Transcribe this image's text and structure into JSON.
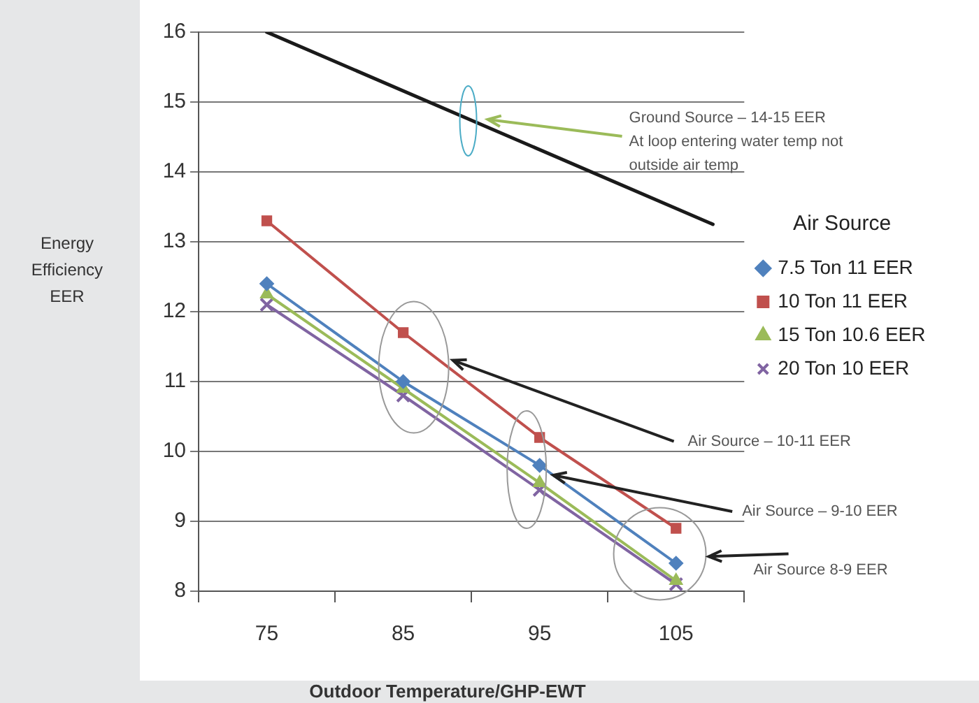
{
  "chart_data": {
    "type": "line",
    "xlabel": "Outdoor Temperature/GHP-EWT",
    "ylabel": "Energy\nEfficiency\nEER",
    "legend_title": "Air Source",
    "x": [
      75,
      85,
      95,
      105
    ],
    "xlim": [
      70,
      110
    ],
    "xticks": [
      {
        "value": 70,
        "label": null
      },
      75,
      {
        "value": 80,
        "label": null
      },
      85,
      {
        "value": 90,
        "label": null
      },
      95,
      {
        "value": 100,
        "label": null
      },
      105,
      {
        "value": 110,
        "label": null
      }
    ],
    "ylim": [
      8,
      16
    ],
    "yticks": [
      8,
      9,
      10,
      11,
      12,
      13,
      14,
      15,
      16
    ],
    "grid": "y",
    "legend": "right",
    "line_style": "solid",
    "series": [
      {
        "name": "7.5 Ton 11 EER",
        "color": "#4f81bd",
        "marker": "diamond",
        "values": [
          12.4,
          11.0,
          9.8,
          8.4
        ]
      },
      {
        "name": "10 Ton 11 EER",
        "color": "#c0504d",
        "marker": "square",
        "values": [
          13.3,
          11.7,
          10.2,
          8.9
        ]
      },
      {
        "name": "15 Ton 10.6 EER",
        "color": "#9bbb59",
        "marker": "triangle",
        "values": [
          12.25,
          10.9,
          9.55,
          8.15
        ]
      },
      {
        "name": "20 Ton 10 EER",
        "color": "#8064a2",
        "marker": "cross",
        "values": [
          12.1,
          10.8,
          9.45,
          8.1
        ]
      },
      {
        "color": "#1a1a1a",
        "marker": "none",
        "x": [
          75,
          107.7
        ],
        "values": [
          16.0,
          13.25
        ]
      }
    ],
    "annotations": [
      {
        "text": "Ground Source – 14-15 EER\nAt loop entering water temp not\noutside air temp",
        "x": 91.2,
        "y": 14.75
      },
      "Air Source – 10-11 EER",
      {
        "text": "Air Source – 9-10 EER",
        "x": 96,
        "y": 9.66
      },
      "Air Source 8-9 EER"
    ]
  }
}
